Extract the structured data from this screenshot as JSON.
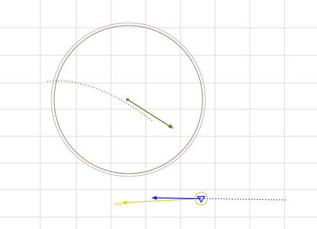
{
  "colors": {
    "background": "#ffffff",
    "grid": "#d9d9d9",
    "zone_outer": "#d7a3b3",
    "zone_inner": "#7b8a5a",
    "own_vector": "#6b7d2e",
    "own_track": "#6b7d2e",
    "target_blue": "#1f2bd6",
    "target_track": "#5a63e6",
    "target_yellow": "#e6cf18",
    "target_ring": "#e3b23a"
  },
  "icons": {
    "own_ship": "dot-icon",
    "target": "triangle-down-icon"
  },
  "target_label": "269"
}
